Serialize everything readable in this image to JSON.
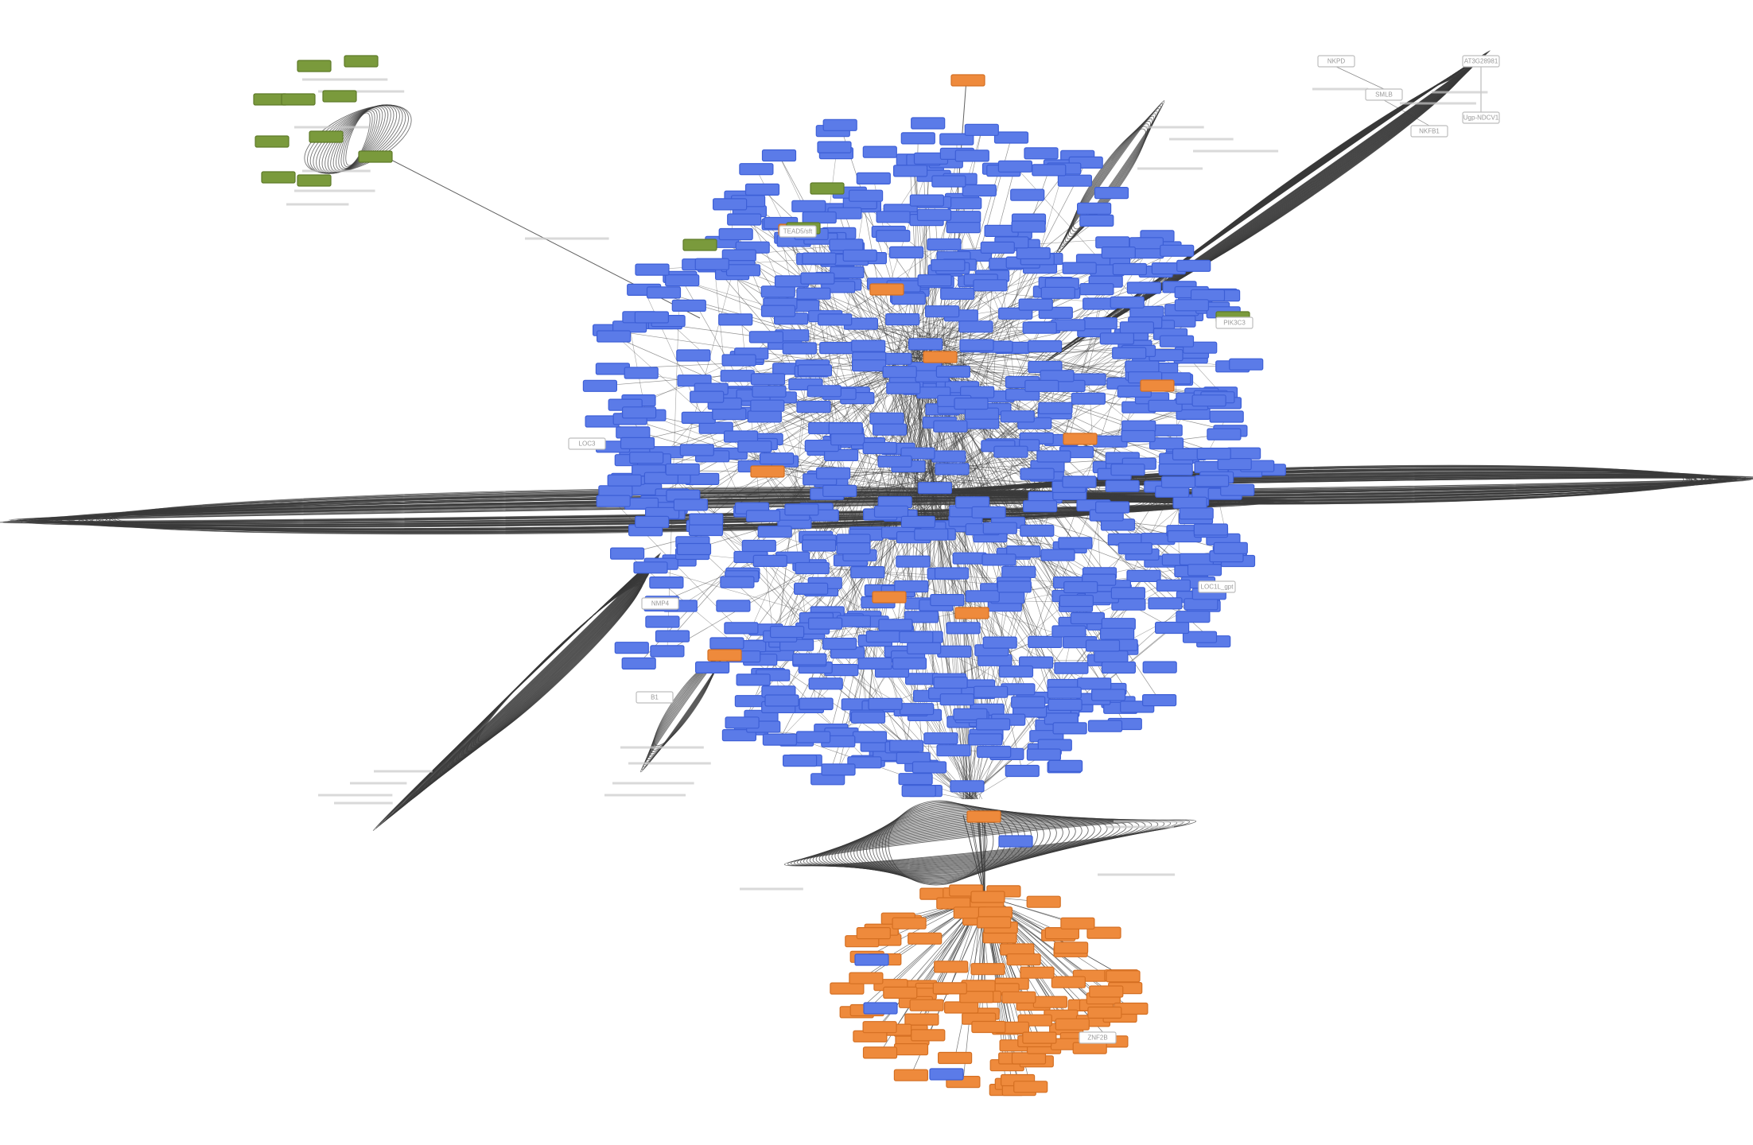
{
  "colors": {
    "background": "#ffffff",
    "blue_node": "#5b7be8",
    "blue_node_border": "#3d5fd6",
    "orange_node": "#ee8a3c",
    "orange_node_border": "#d46f22",
    "green_node": "#7a9a3c",
    "green_node_border": "#5e7a28",
    "white_node": "#ffffff",
    "white_node_border": "#bdbdbd",
    "edge": "#3a3a3a"
  },
  "labels": {
    "white_nodes": [
      "NKPD",
      "SMLB",
      "AT3G28981",
      "Ugp-NDCV1",
      "NKFB1",
      "LOC3",
      "PIK3C3",
      "NMP4",
      "LOC1L_gpt",
      "B1",
      "TEAD5/sft",
      "ZNF2B"
    ]
  },
  "clusters": [
    {
      "name": "main-blue-cluster",
      "color": "blue",
      "count": 780
    },
    {
      "name": "orange-cluster",
      "color": "orange",
      "count": 110
    },
    {
      "name": "green-cluster",
      "color": "green",
      "count": 11
    },
    {
      "name": "white-cluster-top-right",
      "color": "white",
      "count": 5
    }
  ]
}
